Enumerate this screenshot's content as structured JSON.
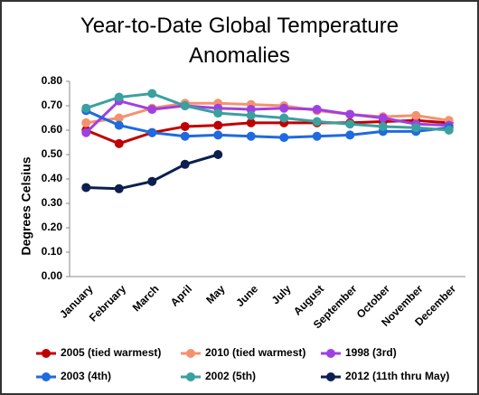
{
  "chart_data": {
    "type": "line",
    "title": "Year-to-Date Global Temperature Anomalies",
    "y_label": "Degrees Celsius",
    "categories": [
      "January",
      "February",
      "March",
      "April",
      "May",
      "June",
      "July",
      "August",
      "September",
      "October",
      "November",
      "December"
    ],
    "ylim": [
      0,
      0.8
    ],
    "yticks": [
      {
        "value": 0,
        "label": "0.00"
      },
      {
        "value": 0.1,
        "label": "0.10"
      },
      {
        "value": 0.2,
        "label": "0.20"
      },
      {
        "value": 0.3,
        "label": "0.30"
      },
      {
        "value": 0.4,
        "label": "0.40"
      },
      {
        "value": 0.5,
        "label": "0.50"
      },
      {
        "value": 0.6,
        "label": "0.60"
      },
      {
        "value": 0.7,
        "label": "0.70"
      },
      {
        "value": 0.8,
        "label": "0.80"
      }
    ],
    "grid": false,
    "legend": "bottom",
    "series": [
      {
        "name": "2005 (tied warmest)",
        "color": "#c00000",
        "values": [
          0.6,
          0.545,
          0.59,
          0.615,
          0.62,
          0.63,
          0.63,
          0.63,
          0.63,
          0.635,
          0.64,
          0.63
        ]
      },
      {
        "name": "2010 (tied warmest)",
        "color": "#f4926f",
        "values": [
          0.63,
          0.65,
          0.69,
          0.71,
          0.71,
          0.705,
          0.7,
          0.68,
          0.665,
          0.655,
          0.66,
          0.64
        ]
      },
      {
        "name": "1998 (3rd)",
        "color": "#a040e0",
        "values": [
          0.59,
          0.72,
          0.685,
          0.7,
          0.69,
          0.685,
          0.69,
          0.685,
          0.665,
          0.65,
          0.625,
          0.62
        ]
      },
      {
        "name": "2003 (4th)",
        "color": "#1f6ae0",
        "values": [
          0.68,
          0.62,
          0.59,
          0.575,
          0.58,
          0.575,
          0.57,
          0.575,
          0.58,
          0.595,
          0.595,
          0.61
        ]
      },
      {
        "name": "2002 (5th)",
        "color": "#3aa0a0",
        "values": [
          0.69,
          0.735,
          0.75,
          0.7,
          0.67,
          0.66,
          0.65,
          0.635,
          0.625,
          0.615,
          0.61,
          0.6
        ]
      },
      {
        "name": "2012 (11th thru May)",
        "color": "#0c1f50",
        "values": [
          0.365,
          0.36,
          0.39,
          0.46,
          0.5,
          null,
          null,
          null,
          null,
          null,
          null,
          null
        ]
      }
    ]
  }
}
